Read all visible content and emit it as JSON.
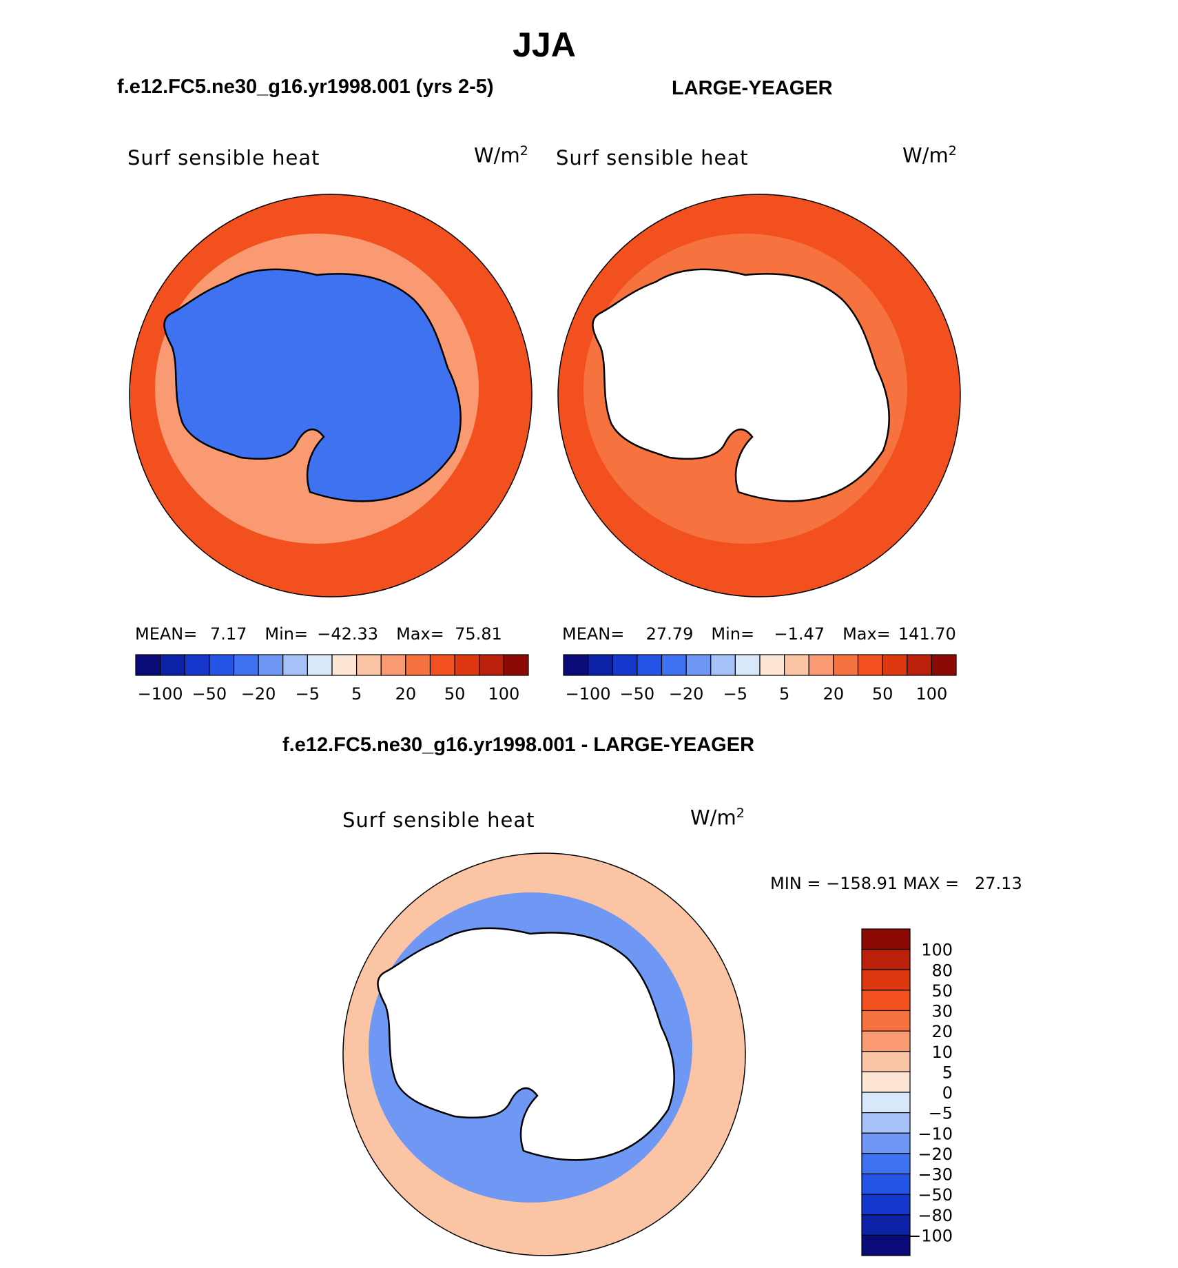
{
  "season": "JJA",
  "colors": {
    "coast": "#000000",
    "land": "#ffffff"
  },
  "chart_data": [
    {
      "type": "heatmap",
      "projection": "south-polar-stereographic",
      "case_title": "f.e12.FC5.ne30_g16.yr1998.001 (yrs 2-5)",
      "variable": "Surf sensible heat",
      "units": "W/m",
      "units_exp": "2",
      "stats": {
        "mean_label": "MEAN=",
        "mean": "7.17",
        "min_label": "Min=",
        "min": "−42.33",
        "max_label": "Max=",
        "max": "75.81"
      },
      "levels": [
        -100,
        -80,
        -50,
        -30,
        -20,
        -10,
        -5,
        0,
        5,
        10,
        20,
        30,
        50,
        80,
        100
      ],
      "colorbar_labels": [
        "−100",
        "−50",
        "−20",
        "−5",
        "5",
        "20",
        "50",
        "100"
      ],
      "colorbar_colors": [
        "#0a0a78",
        "#0c22a6",
        "#1637cc",
        "#2454e6",
        "#3f72f0",
        "#6f98f5",
        "#a7c2f9",
        "#d9e7fb",
        "#fde6d4",
        "#fbc4a5",
        "#f99a72",
        "#f6723f",
        "#f2511f",
        "#dd3810",
        "#ba200a",
        "#8b0a06"
      ],
      "field": {
        "ocean_rings": [
          {
            "lat_band": "70-60S",
            "value": 10
          },
          {
            "lat_band": "60-40S",
            "value": 40
          },
          {
            "lat_band": "antarctica",
            "value": -30
          }
        ]
      }
    },
    {
      "type": "heatmap",
      "projection": "south-polar-stereographic",
      "case_title": "LARGE-YEAGER",
      "variable": "Surf sensible heat",
      "units": "W/m",
      "units_exp": "2",
      "stats": {
        "mean_label": "MEAN=",
        "mean": "27.79",
        "min_label": "Min=",
        "min": "−1.47",
        "max_label": "Max=",
        "max": "141.70"
      },
      "levels": [
        -100,
        -80,
        -50,
        -30,
        -20,
        -10,
        -5,
        0,
        5,
        10,
        20,
        30,
        50,
        80,
        100
      ],
      "colorbar_labels": [
        "−100",
        "−50",
        "−20",
        "−5",
        "5",
        "20",
        "50",
        "100"
      ],
      "colorbar_colors": [
        "#0a0a78",
        "#0c22a6",
        "#1637cc",
        "#2454e6",
        "#3f72f0",
        "#6f98f5",
        "#a7c2f9",
        "#d9e7fb",
        "#fde6d4",
        "#fbc4a5",
        "#f99a72",
        "#f6723f",
        "#f2511f",
        "#dd3810",
        "#ba200a",
        "#8b0a06"
      ],
      "field": {
        "ocean_rings": [
          {
            "lat_band": "70-60S",
            "value": 20
          },
          {
            "lat_band": "60-40S",
            "value": 40
          },
          {
            "lat_band": "antarctica",
            "value": null
          }
        ]
      }
    },
    {
      "type": "heatmap",
      "projection": "south-polar-stereographic",
      "case_title": "f.e12.FC5.ne30_g16.yr1998.001 - LARGE-YEAGER",
      "variable": "Surf sensible heat",
      "units": "W/m",
      "units_exp": "2",
      "stats_text": "MIN = −158.91 MAX =   27.13",
      "levels": [
        -100,
        -80,
        -50,
        -30,
        -20,
        -10,
        -5,
        0,
        5,
        10,
        20,
        30,
        50,
        80,
        100
      ],
      "colorbar_labels": [
        "100",
        "80",
        "50",
        "30",
        "20",
        "10",
        "5",
        "0",
        "−5",
        "−10",
        "−20",
        "−30",
        "−50",
        "−80",
        "−100"
      ],
      "colorbar_colors": [
        "#8b0a06",
        "#ba200a",
        "#dd3810",
        "#f2511f",
        "#f6723f",
        "#f99a72",
        "#fbc4a5",
        "#fde6d4",
        "#d9e7fb",
        "#a7c2f9",
        "#6f98f5",
        "#3f72f0",
        "#2454e6",
        "#1637cc",
        "#0c22a6",
        "#0a0a78"
      ],
      "field": {
        "ocean_rings": [
          {
            "lat_band": "70-60S",
            "value": -20
          },
          {
            "lat_band": "60-40S",
            "value": 5
          },
          {
            "lat_band": "antarctica",
            "value": null
          }
        ]
      }
    }
  ]
}
